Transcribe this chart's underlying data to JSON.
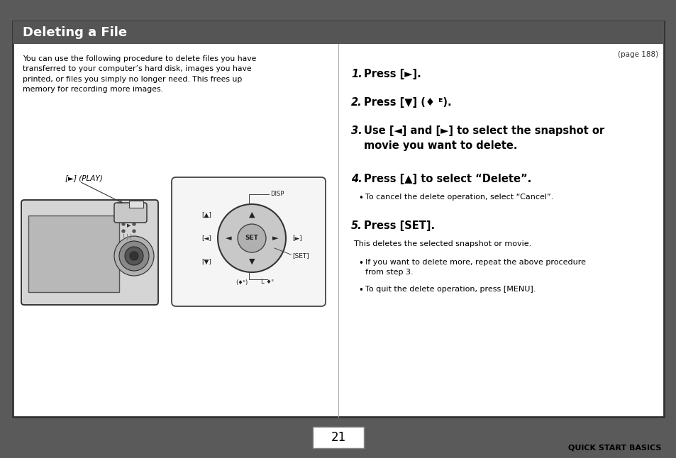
{
  "title": "Deleting a File",
  "title_bg": "#555555",
  "title_fg": "#ffffff",
  "page_bg": "#ffffff",
  "outer_bg": "#5a5a5a",
  "border_color": "#444444",
  "page_number": "21",
  "footer_right": "QUICK START BASICS",
  "page_ref": "(page 188)",
  "left_intro": "You can use the following procedure to delete files you have\ntransferred to your computer’s hard disk, images you have\nprinted, or files you simply no longer need. This frees up\nmemory for recording more images.",
  "play_label": "[►] (PLAY)"
}
